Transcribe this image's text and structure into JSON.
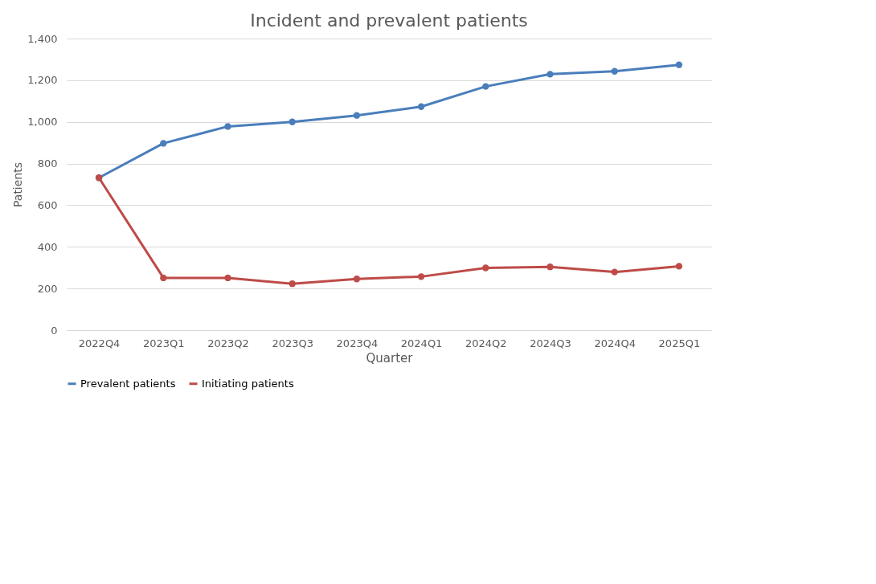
{
  "chart_data": {
    "type": "line",
    "title": "Incident and prevalent patients",
    "xlabel": "Quarter",
    "ylabel": "Patients",
    "categories": [
      "2022Q4",
      "2023Q1",
      "2023Q2",
      "2023Q3",
      "2023Q4",
      "2024Q1",
      "2024Q2",
      "2024Q3",
      "2024Q4",
      "2025Q1"
    ],
    "series": [
      {
        "name": "Prevalent patients",
        "color": "#4a7ebb",
        "values": [
          732,
          897,
          978,
          1000,
          1031,
          1073,
          1170,
          1229,
          1243,
          1274
        ]
      },
      {
        "name": "Initiating patients",
        "color": "#be4b48",
        "values": [
          732,
          251,
          251,
          223,
          246,
          257,
          299,
          304,
          279,
          307
        ]
      }
    ],
    "ylim": [
      0,
      1400
    ],
    "yticks": [
      0,
      200,
      400,
      600,
      800,
      {
        "value": 1000,
        "label": "1,000"
      },
      {
        "value": 1200,
        "label": "1,200"
      },
      {
        "value": 1400,
        "label": "1,400"
      }
    ],
    "grid": "y",
    "legend": "bottom",
    "marker": "circle",
    "line_style": "solid"
  }
}
